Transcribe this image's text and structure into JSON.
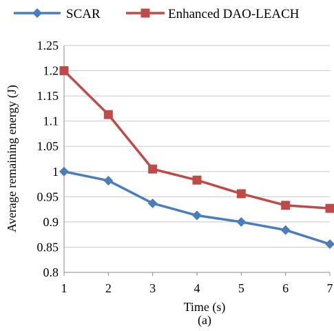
{
  "chart_data": {
    "type": "line",
    "title": "",
    "xlabel": "Time (s)",
    "ylabel": "Average remaining energy (J)",
    "caption": "(a)",
    "x": [
      1,
      2,
      3,
      4,
      5,
      6,
      7
    ],
    "xlim": [
      1,
      7
    ],
    "ylim": [
      0.8,
      1.25
    ],
    "yticks": [
      0.8,
      0.85,
      0.9,
      0.95,
      1,
      1.05,
      1.1,
      1.15,
      1.2,
      1.25
    ],
    "ytick_labels": [
      "0.8",
      "0.85",
      "0.9",
      "0.95",
      "1",
      "1.05",
      "1.1",
      "1.15",
      "1.2",
      "1.25"
    ],
    "xtick_labels": [
      "1",
      "2",
      "3",
      "4",
      "5",
      "6",
      "7"
    ],
    "grid": "horizontal",
    "legend_position": "top",
    "series": [
      {
        "name": "SCAR",
        "color": "#4a7ebb",
        "marker": "diamond",
        "values": [
          1.0,
          0.982,
          0.937,
          0.913,
          0.9,
          0.884,
          0.856
        ]
      },
      {
        "name": "Enhanced DAO-LEACH",
        "color": "#be4b48",
        "marker": "square",
        "values": [
          1.2,
          1.113,
          1.005,
          0.983,
          0.956,
          0.933,
          0.927
        ]
      }
    ]
  }
}
